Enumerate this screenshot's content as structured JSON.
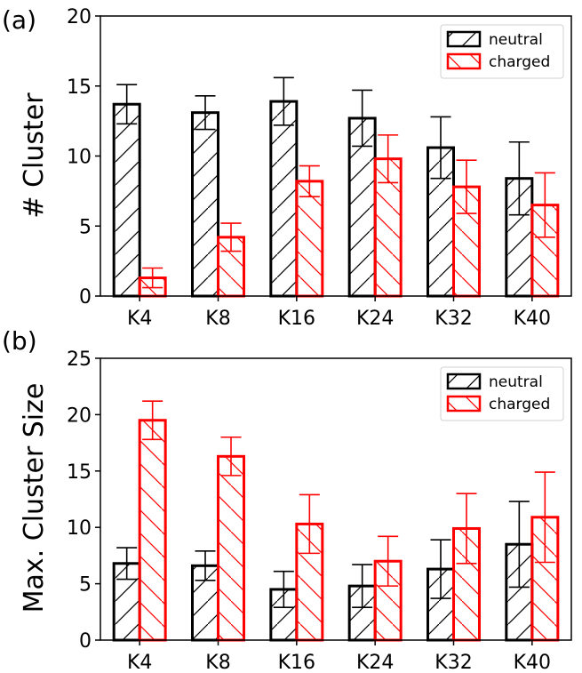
{
  "chart_data": [
    {
      "type": "bar",
      "panel_label": "(a)",
      "ylabel": "# Cluster",
      "xlabel": "",
      "categories": [
        "K4",
        "K8",
        "K16",
        "K24",
        "K32",
        "K40"
      ],
      "ylim": [
        0,
        20
      ],
      "yticks": [
        "0",
        "5",
        "10",
        "15",
        "20"
      ],
      "grid": false,
      "legend_position": "top-right",
      "series": [
        {
          "name": "neutral",
          "color": "#000000",
          "hatch": "forward-slash",
          "values": [
            13.7,
            13.1,
            13.9,
            12.7,
            10.6,
            8.4
          ],
          "errors": [
            1.4,
            1.2,
            1.7,
            2.0,
            2.2,
            2.6
          ]
        },
        {
          "name": "charged",
          "color": "#ff0000",
          "hatch": "back-slash",
          "values": [
            1.3,
            4.2,
            8.2,
            9.8,
            7.8,
            6.5
          ],
          "errors": [
            0.7,
            1.0,
            1.1,
            1.7,
            1.9,
            2.3
          ]
        }
      ]
    },
    {
      "type": "bar",
      "panel_label": "(b)",
      "ylabel": "Max. Cluster Size",
      "xlabel": "",
      "categories": [
        "K4",
        "K8",
        "K16",
        "K24",
        "K32",
        "K40"
      ],
      "ylim": [
        0,
        25
      ],
      "yticks": [
        "0",
        "5",
        "10",
        "15",
        "20",
        "25"
      ],
      "grid": false,
      "legend_position": "top-right",
      "series": [
        {
          "name": "neutral",
          "color": "#000000",
          "hatch": "forward-slash",
          "values": [
            6.8,
            6.6,
            4.5,
            4.8,
            6.3,
            8.5
          ],
          "errors": [
            1.4,
            1.3,
            1.6,
            1.9,
            2.6,
            3.8
          ]
        },
        {
          "name": "charged",
          "color": "#ff0000",
          "hatch": "back-slash",
          "values": [
            19.5,
            16.3,
            10.3,
            7.0,
            9.9,
            10.9
          ],
          "errors": [
            1.7,
            1.7,
            2.6,
            2.2,
            3.1,
            4.0
          ]
        }
      ]
    }
  ]
}
